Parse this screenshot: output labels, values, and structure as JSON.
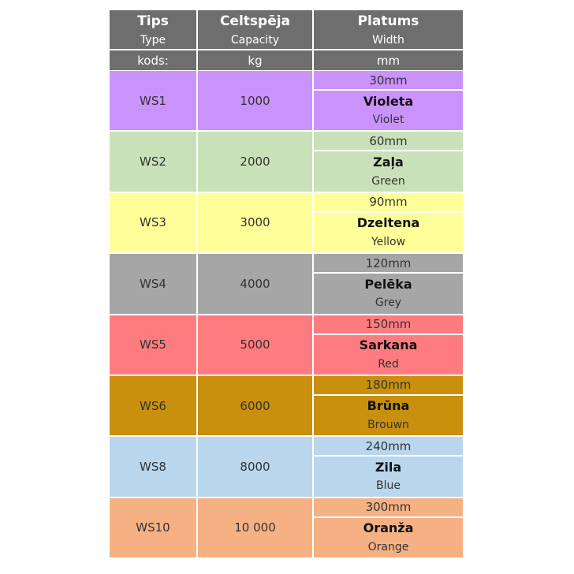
{
  "table": {
    "header": [
      [
        "Tips",
        "Celtspēja",
        "Platums"
      ],
      [
        "Type",
        "Capacity",
        "Width"
      ],
      [
        "kods:",
        "kg",
        "mm"
      ]
    ],
    "rows": [
      {
        "type": "WS1",
        "capacity": "1000",
        "width": "30mm",
        "color_name": "Violeta",
        "color_name_en": "Violet",
        "color": "#c993fb"
      },
      {
        "type": "WS2",
        "capacity": "2000",
        "width": "60mm",
        "color_name": "Zaļa",
        "color_name_en": "Green",
        "color": "#c9e1b8"
      },
      {
        "type": "WS3",
        "capacity": "3000",
        "width": "90mm",
        "color_name": "Dzeltena",
        "color_name_en": "Yellow",
        "color": "#ffff99"
      },
      {
        "type": "WS4",
        "capacity": "4000",
        "width": "120mm",
        "color_name": "Pelēka",
        "color_name_en": "Grey",
        "color": "#a6a6a6"
      },
      {
        "type": "WS5",
        "capacity": "5000",
        "width": "150mm",
        "color_name": "Sarkana",
        "color_name_en": "Red",
        "color": "#fe7c80"
      },
      {
        "type": "WS6",
        "capacity": "6000",
        "width": "180mm",
        "color_name": "Brūna",
        "color_name_en": "Brouwn",
        "color": "#c8900c"
      },
      {
        "type": "WS8",
        "capacity": "8000",
        "width": "240mm",
        "color_name": "Zila",
        "color_name_en": "Blue",
        "color": "#b9d6ec"
      },
      {
        "type": "WS10",
        "capacity": "10 000",
        "width": "300mm",
        "color_name": "Oranža",
        "color_name_en": "Orange",
        "color": "#f5b183"
      }
    ]
  }
}
